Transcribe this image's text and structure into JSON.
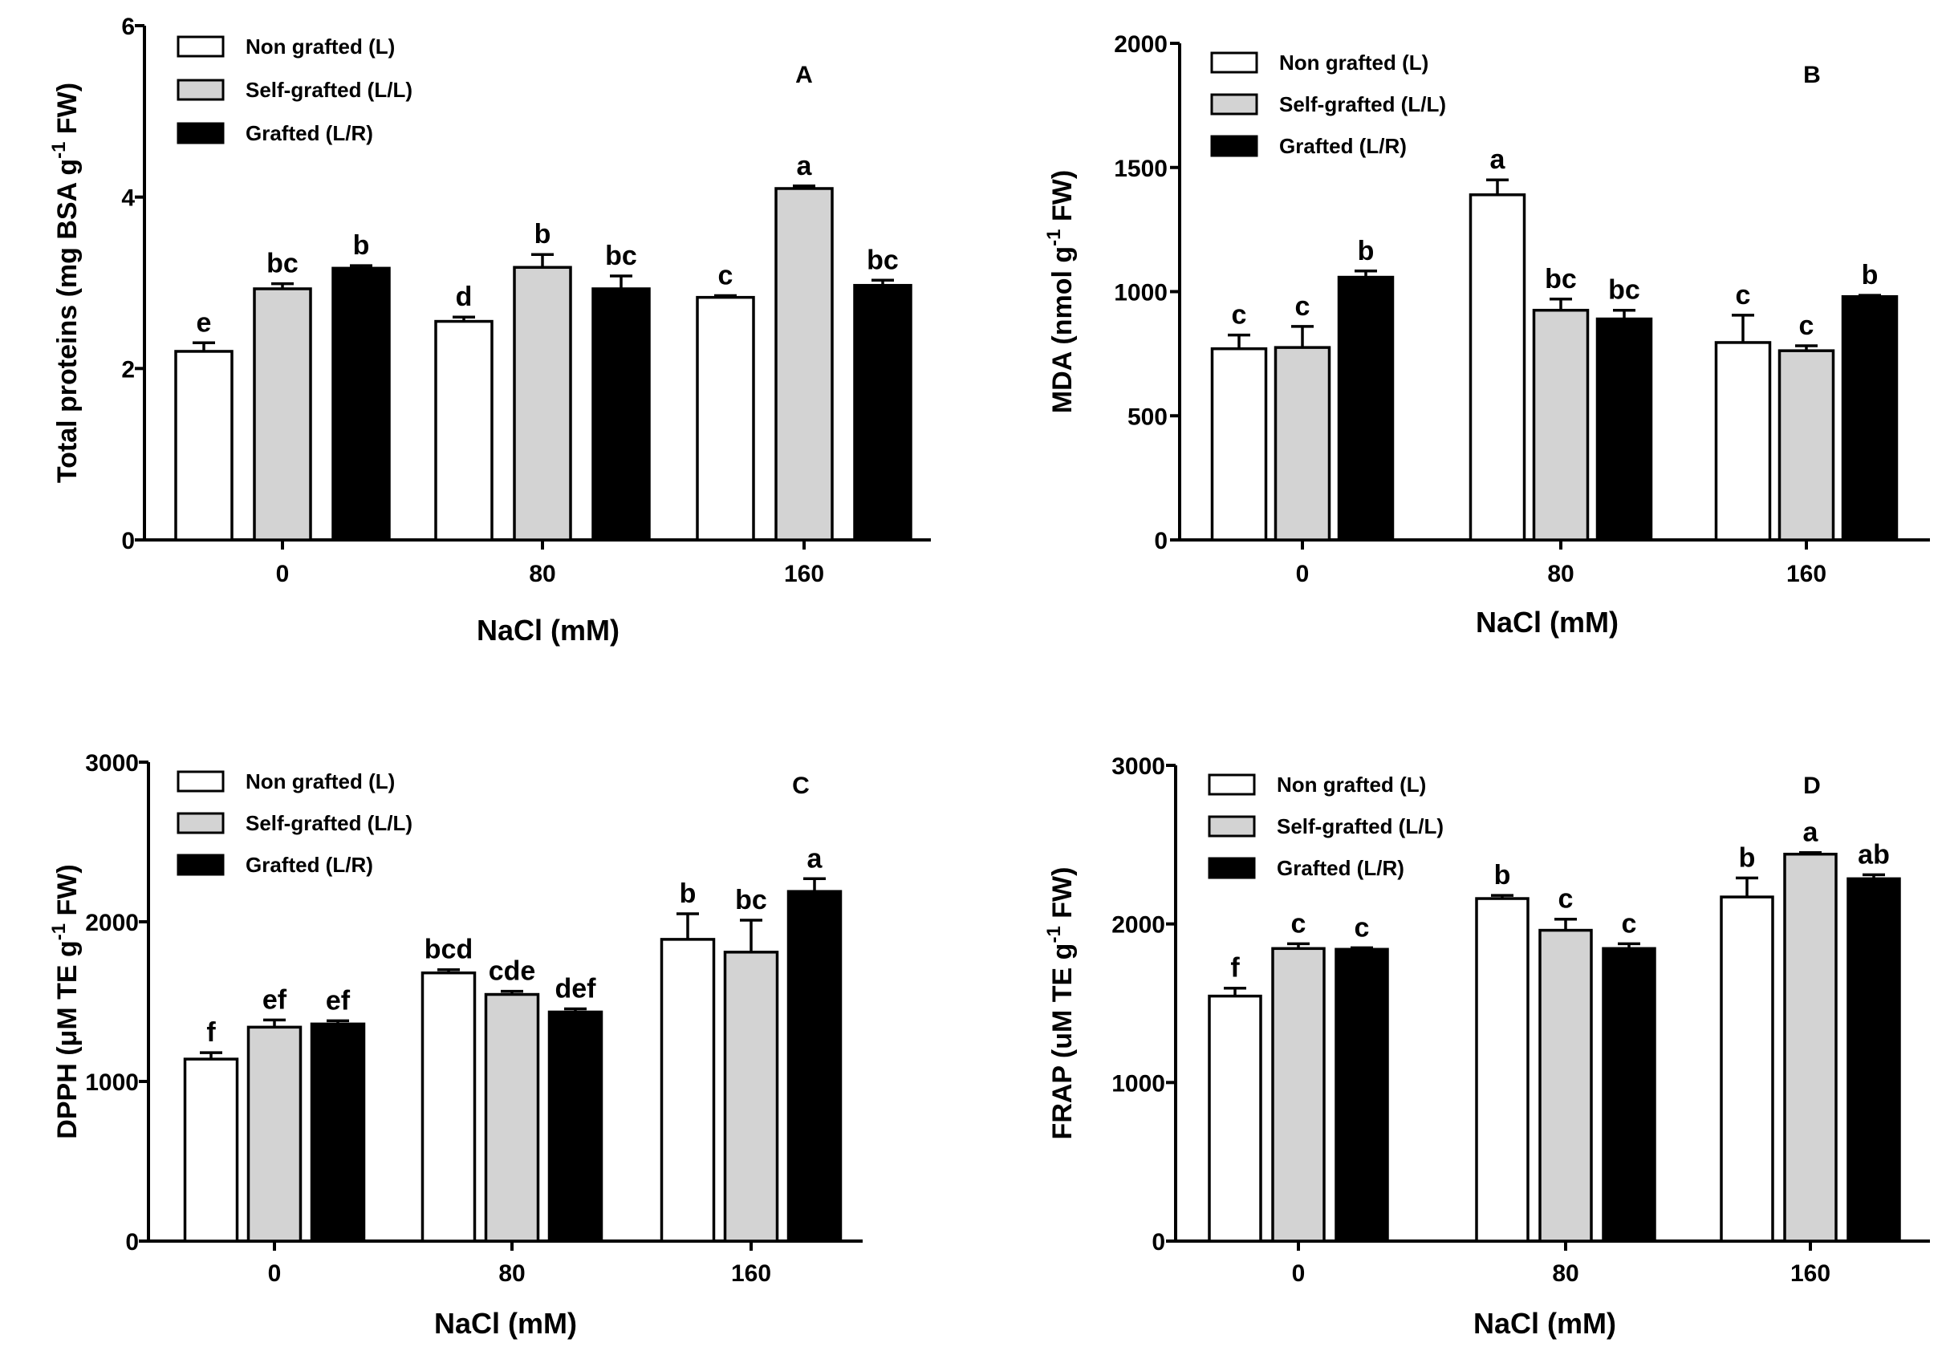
{
  "colors": {
    "Non grafted (L)": "#ffffff",
    "Self-grafted (L/L)": "#d3d3d3",
    "Grafted (L/R)": "#000000"
  },
  "chart_data": [
    {
      "type": "bar",
      "panel": "A",
      "categories": [
        "0",
        "80",
        "160"
      ],
      "xlabel": "NaCl (mM)",
      "ylabel": {
        "base": "Total proteins (mg BSA g",
        "sup": "-1",
        "after": " FW)"
      },
      "ylim": [
        0,
        6
      ],
      "yticks": [
        "0",
        "2",
        "4",
        "6"
      ],
      "legend": [
        "Non grafted (L)",
        "Self-grafted (L/L)",
        "Grafted (L/R)"
      ],
      "series": [
        {
          "name": "Non grafted (L)",
          "values": [
            2.2,
            2.55,
            2.83
          ],
          "errors": [
            0.1,
            0.05,
            0.02
          ],
          "labels": [
            "e",
            "d",
            "c"
          ]
        },
        {
          "name": "Self-grafted (L/L)",
          "values": [
            2.93,
            3.18,
            4.1
          ],
          "errors": [
            0.06,
            0.15,
            0.03
          ],
          "labels": [
            "bc",
            "b",
            "a"
          ]
        },
        {
          "name": "Grafted (L/R)",
          "values": [
            3.17,
            2.93,
            2.97
          ],
          "errors": [
            0.03,
            0.15,
            0.06
          ],
          "labels": [
            "b",
            "bc",
            "bc"
          ]
        }
      ]
    },
    {
      "type": "bar",
      "panel": "B",
      "categories": [
        "0",
        "80",
        "160"
      ],
      "xlabel": "NaCl (mM)",
      "ylabel": {
        "base": "MDA (nmol g",
        "sup": "-1",
        "after": " FW)"
      },
      "ylim": [
        0,
        2000
      ],
      "yticks": [
        "0",
        "500",
        "1000",
        "1500",
        "2000"
      ],
      "legend": [
        "Non grafted (L)",
        "Self-grafted (L/L)",
        "Grafted (L/R)"
      ],
      "series": [
        {
          "name": "Non grafted (L)",
          "values": [
            770,
            1390,
            795
          ],
          "errors": [
            55,
            60,
            110
          ],
          "labels": [
            "c",
            "a",
            "c"
          ]
        },
        {
          "name": "Self-grafted (L/L)",
          "values": [
            775,
            925,
            762
          ],
          "errors": [
            85,
            45,
            20
          ],
          "labels": [
            "c",
            "bc",
            "c"
          ]
        },
        {
          "name": "Grafted (L/R)",
          "values": [
            1058,
            890,
            980
          ],
          "errors": [
            25,
            35,
            5
          ],
          "labels": [
            "b",
            "bc",
            "b"
          ]
        }
      ]
    },
    {
      "type": "bar",
      "panel": "C",
      "categories": [
        "0",
        "80",
        "160"
      ],
      "xlabel": "NaCl (mM)",
      "ylabel": {
        "base": "DPPH  (μM TE g",
        "sup": "-1",
        "after": " FW)"
      },
      "ylim": [
        0,
        3000
      ],
      "yticks": [
        "0",
        "1000",
        "2000",
        "3000"
      ],
      "legend": [
        "Non grafted (L)",
        "Self-grafted (L/L)",
        "Grafted (L/R)"
      ],
      "series": [
        {
          "name": "Non grafted (L)",
          "values": [
            1140,
            1680,
            1890
          ],
          "errors": [
            40,
            20,
            160
          ],
          "labels": [
            "f",
            "bcd",
            "b"
          ]
        },
        {
          "name": "Self-grafted (L/L)",
          "values": [
            1340,
            1545,
            1810
          ],
          "errors": [
            45,
            20,
            200
          ],
          "labels": [
            "ef",
            "cde",
            "bc"
          ]
        },
        {
          "name": "Grafted (L/R)",
          "values": [
            1360,
            1435,
            2190
          ],
          "errors": [
            20,
            20,
            80
          ],
          "labels": [
            "ef",
            "def",
            "a"
          ]
        }
      ]
    },
    {
      "type": "bar",
      "panel": "D",
      "categories": [
        "0",
        "80",
        "160"
      ],
      "xlabel": "NaCl (mM)",
      "ylabel": {
        "base": "FRAP  (uM TE g",
        "sup": "-1",
        "after": " FW)"
      },
      "ylim": [
        0,
        3000
      ],
      "yticks": [
        "0",
        "1000",
        "2000",
        "3000"
      ],
      "legend": [
        "Non grafted (L)",
        "Self-grafted (L/L)",
        "Grafted (L/R)"
      ],
      "series": [
        {
          "name": "Non grafted (L)",
          "values": [
            1545,
            2160,
            2170
          ],
          "errors": [
            50,
            20,
            120
          ],
          "labels": [
            "f",
            "b",
            "b"
          ]
        },
        {
          "name": "Self-grafted (L/L)",
          "values": [
            1845,
            1960,
            2440
          ],
          "errors": [
            30,
            70,
            10
          ],
          "labels": [
            "c",
            "c",
            "a"
          ]
        },
        {
          "name": "Grafted (L/R)",
          "values": [
            1840,
            1845,
            2285
          ],
          "errors": [
            10,
            30,
            25
          ],
          "labels": [
            "c",
            "c",
            "ab"
          ]
        }
      ]
    }
  ]
}
